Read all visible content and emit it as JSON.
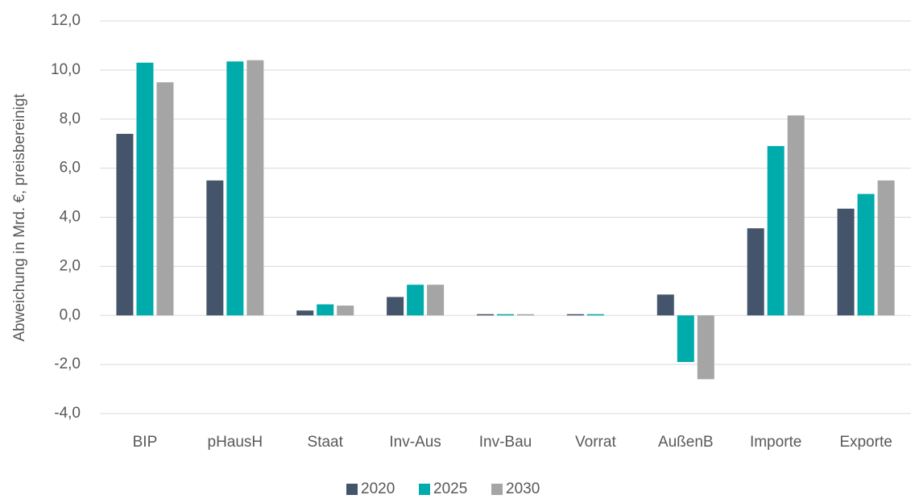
{
  "chart_data": {
    "type": "bar",
    "y_label": "Abweichung in Mrd. €, preisbereinigt",
    "categories": [
      "BIP",
      "pHausH",
      "Staat",
      "Inv-Aus",
      "Inv-Bau",
      "Vorrat",
      "AußenB",
      "Importe",
      "Exporte"
    ],
    "series": [
      {
        "name": "2020",
        "color": "#44546a",
        "values": [
          7.4,
          5.5,
          0.2,
          0.75,
          0.05,
          0.05,
          0.85,
          3.55,
          4.35
        ]
      },
      {
        "name": "2025",
        "color": "#00abab",
        "values": [
          10.3,
          10.35,
          0.45,
          1.25,
          0.05,
          0.05,
          -1.9,
          6.9,
          4.95
        ]
      },
      {
        "name": "2030",
        "color": "#a5a5a5",
        "values": [
          9.5,
          10.4,
          0.4,
          1.25,
          0.05,
          0,
          -2.6,
          8.15,
          5.5
        ]
      }
    ],
    "ylim": [
      -4,
      12
    ],
    "yticks": [
      {
        "value": -4,
        "label": "-4,0"
      },
      {
        "value": -2,
        "label": "-2,0"
      },
      {
        "value": 0,
        "label": "0,0"
      },
      {
        "value": 2,
        "label": "2,0"
      },
      {
        "value": 4,
        "label": "4,0"
      },
      {
        "value": 6,
        "label": "6,0"
      },
      {
        "value": 8,
        "label": "8,0"
      },
      {
        "value": 10,
        "label": "10,0"
      },
      {
        "value": 12,
        "label": "12,0"
      }
    ],
    "grid": true,
    "legend": "bottom"
  }
}
